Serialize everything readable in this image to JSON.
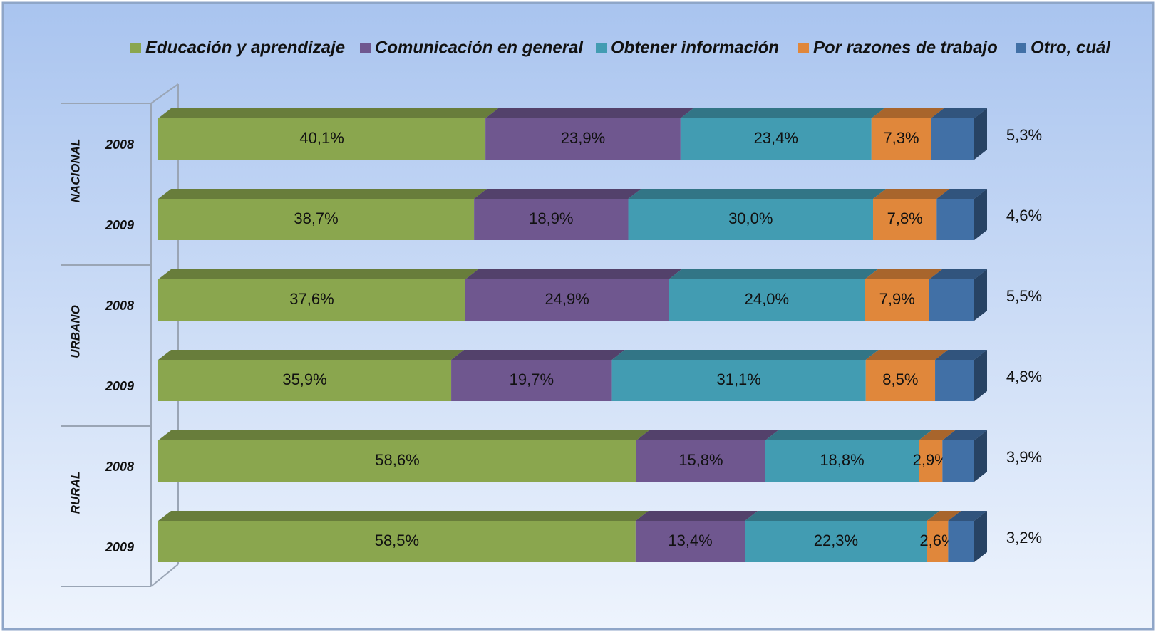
{
  "chart_data": {
    "type": "stacked_bar_horizontal",
    "groups": [
      "NACIONAL",
      "URBANO",
      "RURAL"
    ],
    "categories": [
      "2008",
      "2009",
      "2008",
      "2009",
      "2008",
      "2009"
    ],
    "legend": "top",
    "series": [
      {
        "name": "Educación y aprendizaje",
        "color": "#8aa64e",
        "values": [
          40.1,
          38.7,
          37.6,
          35.9,
          58.6,
          58.5
        ],
        "value_labels": [
          "40,1%",
          "38,7%",
          "37,6%",
          "35,9%",
          "58,6%",
          "58,5%"
        ]
      },
      {
        "name": "Comunicación en general",
        "color": "#6f578f",
        "values": [
          23.9,
          18.9,
          24.9,
          19.7,
          15.8,
          13.4
        ],
        "value_labels": [
          "23,9%",
          "18,9%",
          "24,9%",
          "19,7%",
          "15,8%",
          "13,4%"
        ]
      },
      {
        "name": "Obtener información",
        "color": "#429cb2",
        "values": [
          23.4,
          30.0,
          24.0,
          31.1,
          18.8,
          22.3
        ],
        "value_labels": [
          "23,4%",
          "30,0%",
          "24,0%",
          "31,1%",
          "18,8%",
          "22,3%"
        ]
      },
      {
        "name": "Por razones de trabajo",
        "color": "#e0873b",
        "values": [
          7.3,
          7.8,
          7.9,
          8.5,
          2.9,
          2.6
        ],
        "value_labels": [
          "7,3%",
          "7,8%",
          "7,9%",
          "8,5%",
          "2,9%",
          "2,6%"
        ]
      },
      {
        "name": "Otro, cuál",
        "color": "#4170a6",
        "values": [
          5.3,
          4.6,
          5.5,
          4.8,
          3.9,
          3.2
        ],
        "value_labels": [
          "5,3%",
          "4,6%",
          "5,5%",
          "4,8%",
          "3,9%",
          "3,2%"
        ]
      }
    ]
  }
}
